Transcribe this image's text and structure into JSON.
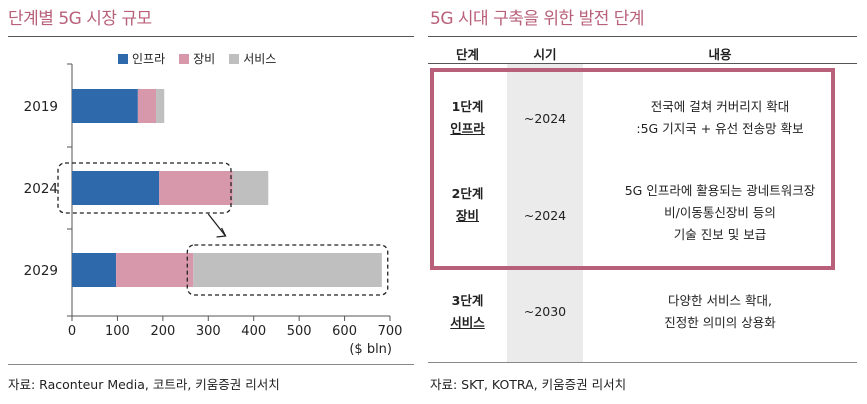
{
  "left_panel": {
    "title": "단계별 5G 시장 규모",
    "source": "자료: Raconteur Media, 코트라, 키움증권 리서치"
  },
  "right_panel": {
    "title": "5G 시대 구축을 위한 발전 단계",
    "source": "자료: SKT, KOTRA, 키움증권 리서치",
    "headers": [
      "단계",
      "시기",
      "내용"
    ],
    "rows": [
      {
        "stage_num": "1단계",
        "stage_name": "인프라",
        "period": "~2024",
        "content": [
          "전국에 걸쳐 커버리지 확대",
          ":5G 기지국 + 유선 전송망 확보"
        ]
      },
      {
        "stage_num": "2단계",
        "stage_name": "장비",
        "period": "~2024",
        "content": [
          "5G 인프라에 활용되는 광네트워크장",
          "비/이동통신장비 등의",
          "기술 진보 및 보급"
        ]
      },
      {
        "stage_num": "3단계",
        "stage_name": "서비스",
        "period": "~2030",
        "content": [
          "다양한 서비스 확대,",
          "진정한 의미의 상용화"
        ]
      }
    ],
    "colors": {
      "highlight": "#b8607a",
      "period_bg": "#ebebeb"
    }
  },
  "chart_data": {
    "type": "bar",
    "orientation": "horizontal",
    "stacked": true,
    "categories": [
      "2019",
      "2024",
      "2029"
    ],
    "series": [
      {
        "name": "인프라",
        "color": "#2e6aab",
        "values": [
          145,
          192,
          97
        ]
      },
      {
        "name": "장비",
        "color": "#d898ab",
        "values": [
          40,
          162,
          170
        ]
      },
      {
        "name": "서비스",
        "color": "#bfbfbf",
        "values": [
          18,
          78,
          415
        ]
      }
    ],
    "xlim": [
      0,
      700
    ],
    "xticks": [
      "0",
      "100",
      "200",
      "300",
      "400",
      "500",
      "600",
      "700"
    ],
    "unit_label": "($ bln)",
    "legend_position": "top",
    "annotation": "dashed box around 2024 bar (to 350) with arrow to dashed box around 2029 service segment"
  }
}
